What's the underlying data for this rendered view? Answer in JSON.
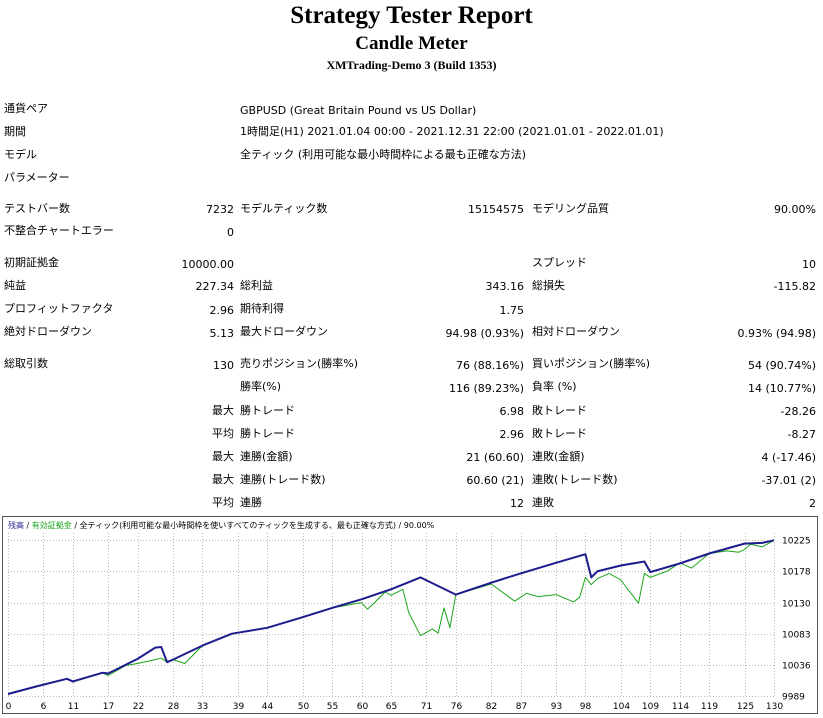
{
  "report": {
    "title": "Strategy Tester Report",
    "subtitle": "Candle Meter",
    "server": "XMTrading-Demo 3 (Build 1353)"
  },
  "info": [
    {
      "label": "通貨ペア",
      "value": "GBPUSD (Great Britain Pound vs US Dollar)"
    },
    {
      "label": "期間",
      "value": "1時間足(H1) 2021.01.04 00:00 - 2021.12.31 22:00 (2021.01.01 - 2022.01.01)"
    },
    {
      "label": "モデル",
      "value": "全ティック (利用可能な最小時間枠による最も正確な方法)"
    },
    {
      "label": "パラメーター",
      "value": ""
    }
  ],
  "stats": {
    "test_bars": {
      "label": "テストバー数",
      "value": "7232"
    },
    "model_ticks": {
      "label": "モデルティック数",
      "value": "15154575"
    },
    "model_quality": {
      "label": "モデリング品質",
      "value": "90.00%"
    },
    "mismatch": {
      "label": "不整合チャートエラー",
      "value": "0"
    },
    "initial_deposit": {
      "label": "初期証拠金",
      "value": "10000.00"
    },
    "spread": {
      "label": "スプレッド",
      "value": "10"
    },
    "net_profit": {
      "label": "純益",
      "value": "227.34"
    },
    "gross_profit": {
      "label": "総利益",
      "value": "343.16"
    },
    "gross_loss": {
      "label": "総損失",
      "value": "-115.82"
    },
    "profit_factor": {
      "label": "プロフィットファクタ",
      "value": "2.96"
    },
    "expected_payoff": {
      "label": "期待利得",
      "value": "1.75"
    },
    "abs_dd": {
      "label": "絶対ドローダウン",
      "value": "5.13"
    },
    "max_dd": {
      "label": "最大ドローダウン",
      "value": "94.98 (0.93%)"
    },
    "rel_dd": {
      "label": "相対ドローダウン",
      "value": "0.93% (94.98)"
    },
    "total_trades": {
      "label": "総取引数",
      "value": "130"
    },
    "short_pos": {
      "label": "売りポジション(勝率%)",
      "value": "76 (88.16%)"
    },
    "long_pos": {
      "label": "買いポジション(勝率%)",
      "value": "54 (90.74%)"
    },
    "win_rate": {
      "label": "勝率(%)",
      "value": "116 (89.23%)"
    },
    "loss_rate": {
      "label": "負率 (%)",
      "value": "14 (10.77%)"
    },
    "largest_profit": {
      "prefix": "最大",
      "label": "勝トレード",
      "value": "6.98"
    },
    "largest_loss": {
      "label": "敗トレード",
      "value": "-28.26"
    },
    "avg_profit": {
      "prefix": "平均",
      "label": "勝トレード",
      "value": "2.96"
    },
    "avg_loss": {
      "label": "敗トレード",
      "value": "-8.27"
    },
    "max_consec_wins": {
      "prefix": "最大",
      "label": "連勝(金額)",
      "value": "21 (60.60)"
    },
    "max_consec_losses": {
      "label": "連敗(金額)",
      "value": "4 (-17.46)"
    },
    "max_consec_profit": {
      "prefix": "最大",
      "label": "連勝(トレード数)",
      "value": "60.60 (21)"
    },
    "max_consec_loss": {
      "label": "連敗(トレード数)",
      "value": "-37.01 (2)"
    },
    "avg_consec_wins": {
      "prefix": "平均",
      "label": "連勝",
      "value": "12"
    },
    "avg_consec_losses": {
      "label": "連敗",
      "value": "2"
    }
  },
  "colors": {
    "balance": "#1c1c8c",
    "equity": "#1aa51a",
    "grid": "#b9b9b9",
    "frame": "#555555"
  },
  "chart_data": {
    "type": "line",
    "legend": {
      "balance": "残高",
      "sep1": " / ",
      "equity": "有効証拠金",
      "sep2": " / ",
      "model": "全ティック(利用可能な最小時間枠を使いすべてのティックを生成する、最も正確な方式)",
      "sep3": " / ",
      "quality": "90.00%"
    },
    "x_ticks": [
      0,
      6,
      11,
      17,
      22,
      28,
      33,
      39,
      44,
      50,
      55,
      60,
      65,
      71,
      76,
      82,
      87,
      93,
      98,
      104,
      109,
      114,
      119,
      125,
      130
    ],
    "y_ticks": [
      9989,
      10036,
      10083,
      10130,
      10178,
      10225
    ],
    "xlim": [
      0,
      130
    ],
    "ylim": [
      9989,
      10235
    ],
    "series": [
      {
        "name": "残高",
        "key": "balance",
        "x": [
          0,
          5,
          10,
          11,
          16,
          17,
          22,
          25,
          26,
          27,
          28,
          33,
          38,
          44,
          50,
          55,
          60,
          65,
          70,
          76,
          82,
          87,
          93,
          98,
          99,
          100,
          104,
          108,
          109,
          114,
          119,
          125,
          128,
          130
        ],
        "y": [
          9992,
          10004,
          10015,
          10011,
          10024,
          10023,
          10045,
          10062,
          10063,
          10040,
          10044,
          10065,
          10083,
          10092,
          10108,
          10122,
          10135,
          10150,
          10168,
          10142,
          10160,
          10174,
          10190,
          10203,
          10168,
          10177,
          10186,
          10192,
          10176,
          10189,
          10204,
          10219,
          10220,
          10224
        ]
      },
      {
        "name": "有効証拠金",
        "key": "equity",
        "x": [
          0,
          5,
          10,
          11,
          16,
          17,
          20,
          22,
          25,
          26,
          27,
          28,
          30,
          33,
          38,
          44,
          50,
          55,
          60,
          61,
          62,
          64,
          65,
          67,
          68,
          70,
          72,
          73,
          74,
          75,
          76,
          82,
          86,
          88,
          90,
          93,
          96,
          97,
          98,
          99,
          100,
          102,
          104,
          105,
          106,
          107,
          108,
          109,
          112,
          114,
          116,
          119,
          122,
          124,
          125,
          126,
          128,
          130
        ],
        "y": [
          9992,
          10004,
          10015,
          10010,
          10024,
          10020,
          10035,
          10038,
          10044,
          10046,
          10040,
          10044,
          10038,
          10065,
          10083,
          10092,
          10108,
          10122,
          10130,
          10120,
          10128,
          10146,
          10141,
          10150,
          10115,
          10080,
          10090,
          10084,
          10122,
          10092,
          10142,
          10158,
          10132,
          10144,
          10139,
          10142,
          10131,
          10138,
          10168,
          10157,
          10166,
          10174,
          10164,
          10152,
          10141,
          10129,
          10174,
          10168,
          10178,
          10190,
          10182,
          10204,
          10208,
          10206,
          10210,
          10218,
          10214,
          10224
        ]
      }
    ]
  }
}
